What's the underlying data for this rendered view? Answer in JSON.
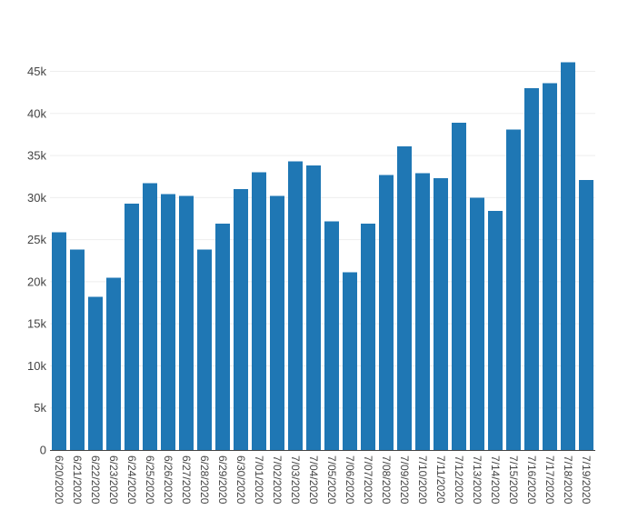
{
  "chart_data": {
    "type": "bar",
    "title": "",
    "xlabel": "",
    "ylabel": "",
    "ylim": [
      0,
      47000
    ],
    "yticks": [
      0,
      5000,
      10000,
      15000,
      20000,
      25000,
      30000,
      35000,
      40000,
      45000
    ],
    "ytick_labels": [
      "0",
      "5k",
      "10k",
      "15k",
      "20k",
      "25k",
      "30k",
      "35k",
      "40k",
      "45k"
    ],
    "grid": true,
    "bar_color": "#1f77b4",
    "categories": [
      "6/20/2020",
      "6/21/2020",
      "6/22/2020",
      "6/23/2020",
      "6/24/2020",
      "6/25/2020",
      "6/26/2020",
      "6/27/2020",
      "6/28/2020",
      "6/29/2020",
      "6/30/2020",
      "7/01/2020",
      "7/02/2020",
      "7/03/2020",
      "7/04/2020",
      "7/05/2020",
      "7/06/2020",
      "7/07/2020",
      "7/08/2020",
      "7/09/2020",
      "7/10/2020",
      "7/11/2020",
      "7/12/2020",
      "7/13/2020",
      "7/14/2020",
      "7/15/2020",
      "7/16/2020",
      "7/17/2020",
      "7/18/2020",
      "7/19/2020"
    ],
    "values": [
      25900,
      23800,
      18200,
      20500,
      29300,
      31700,
      30400,
      30200,
      23800,
      26900,
      31000,
      33000,
      30200,
      34300,
      33800,
      27200,
      21100,
      26900,
      32700,
      36100,
      32900,
      32300,
      38900,
      30000,
      28400,
      38100,
      43000,
      43600,
      46100,
      32100
    ]
  }
}
